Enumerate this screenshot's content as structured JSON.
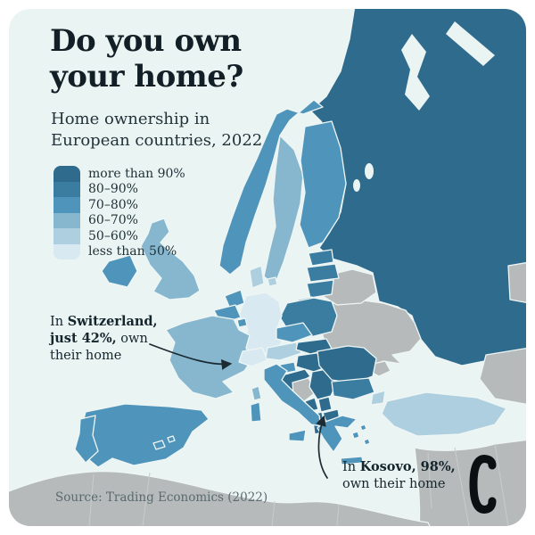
{
  "title": {
    "line1": "Do you own",
    "line2": "your home?"
  },
  "subtitle": {
    "line1": "Home ownership in",
    "line2": "European countries, 2022"
  },
  "legend": {
    "items": [
      {
        "label": "more than 90%",
        "color": "#2f6b8d"
      },
      {
        "label": "80–90%",
        "color": "#3a7da1"
      },
      {
        "label": "70–80%",
        "color": "#4f94ba"
      },
      {
        "label": "60–70%",
        "color": "#86b7cf"
      },
      {
        "label": "50–60%",
        "color": "#aecfdf"
      },
      {
        "label": "less than 50%",
        "color": "#d9e9f1"
      }
    ]
  },
  "annotations": {
    "switzerland": {
      "line1_pre": "In ",
      "line1_bold": "Switzerland,",
      "line2_bold": "just 42%,",
      "line2_post": " own",
      "line3": "their home"
    },
    "kosovo": {
      "line1_pre": "In ",
      "line1_bold": "Kosovo, 98%,",
      "line2": "own their home"
    }
  },
  "source": "Source: Trading Economics (2022)",
  "map": {
    "sea_color": "#eaf4f2",
    "no_data_color": "#b6babb",
    "border_color": "#eef6f5",
    "subborder_color": "#c8cccc",
    "arrow_color": "#1c2b32",
    "logo_color": "#0b0f11",
    "countries": [
      {
        "name": "Russia",
        "category": "more than 90%"
      },
      {
        "name": "Kaliningrad (Russia)",
        "category": "more than 90%"
      },
      {
        "name": "Norway",
        "category": "70–80%"
      },
      {
        "name": "Sweden",
        "category": "60–70%"
      },
      {
        "name": "Finland",
        "category": "70–80%"
      },
      {
        "name": "Estonia",
        "category": "80–90%"
      },
      {
        "name": "Latvia",
        "category": "80–90%"
      },
      {
        "name": "Lithuania",
        "category": "80–90%"
      },
      {
        "name": "Poland",
        "category": "80–90%"
      },
      {
        "name": "Germany",
        "category": "less than 50%"
      },
      {
        "name": "Denmark",
        "category": "50–60%"
      },
      {
        "name": "Netherlands",
        "category": "70–80%"
      },
      {
        "name": "Belgium",
        "category": "70–80%"
      },
      {
        "name": "Luxembourg",
        "category": "70–80%"
      },
      {
        "name": "United Kingdom",
        "category": "60–70%"
      },
      {
        "name": "Ireland",
        "category": "70–80%"
      },
      {
        "name": "France",
        "category": "60–70%"
      },
      {
        "name": "Switzerland",
        "category": "less than 50%"
      },
      {
        "name": "Austria",
        "category": "50–60%"
      },
      {
        "name": "Czechia",
        "category": "70–80%"
      },
      {
        "name": "Slovakia",
        "category": "more than 90%"
      },
      {
        "name": "Hungary",
        "category": "more than 90%"
      },
      {
        "name": "Slovenia",
        "category": "70–80%"
      },
      {
        "name": "Croatia",
        "category": "more than 90%"
      },
      {
        "name": "Serbia",
        "category": "more than 90%"
      },
      {
        "name": "Montenegro",
        "category": "more than 90%"
      },
      {
        "name": "Kosovo",
        "category": "more than 90%"
      },
      {
        "name": "North Macedonia",
        "category": "more than 90%"
      },
      {
        "name": "Albania",
        "category": "more than 90%"
      },
      {
        "name": "Romania",
        "category": "more than 90%"
      },
      {
        "name": "Bulgaria",
        "category": "80–90%"
      },
      {
        "name": "Greece",
        "category": "70–80%"
      },
      {
        "name": "Italy",
        "category": "70–80%"
      },
      {
        "name": "Spain",
        "category": "70–80%"
      },
      {
        "name": "Portugal",
        "category": "70–80%"
      },
      {
        "name": "Turkey",
        "category": "50–60%"
      }
    ],
    "no_data_regions": [
      "Ukraine",
      "Belarus",
      "Moldova",
      "Bosnia and Herzegovina",
      "North Africa",
      "Middle East",
      "Caucasus",
      "Kazakhstan"
    ]
  }
}
